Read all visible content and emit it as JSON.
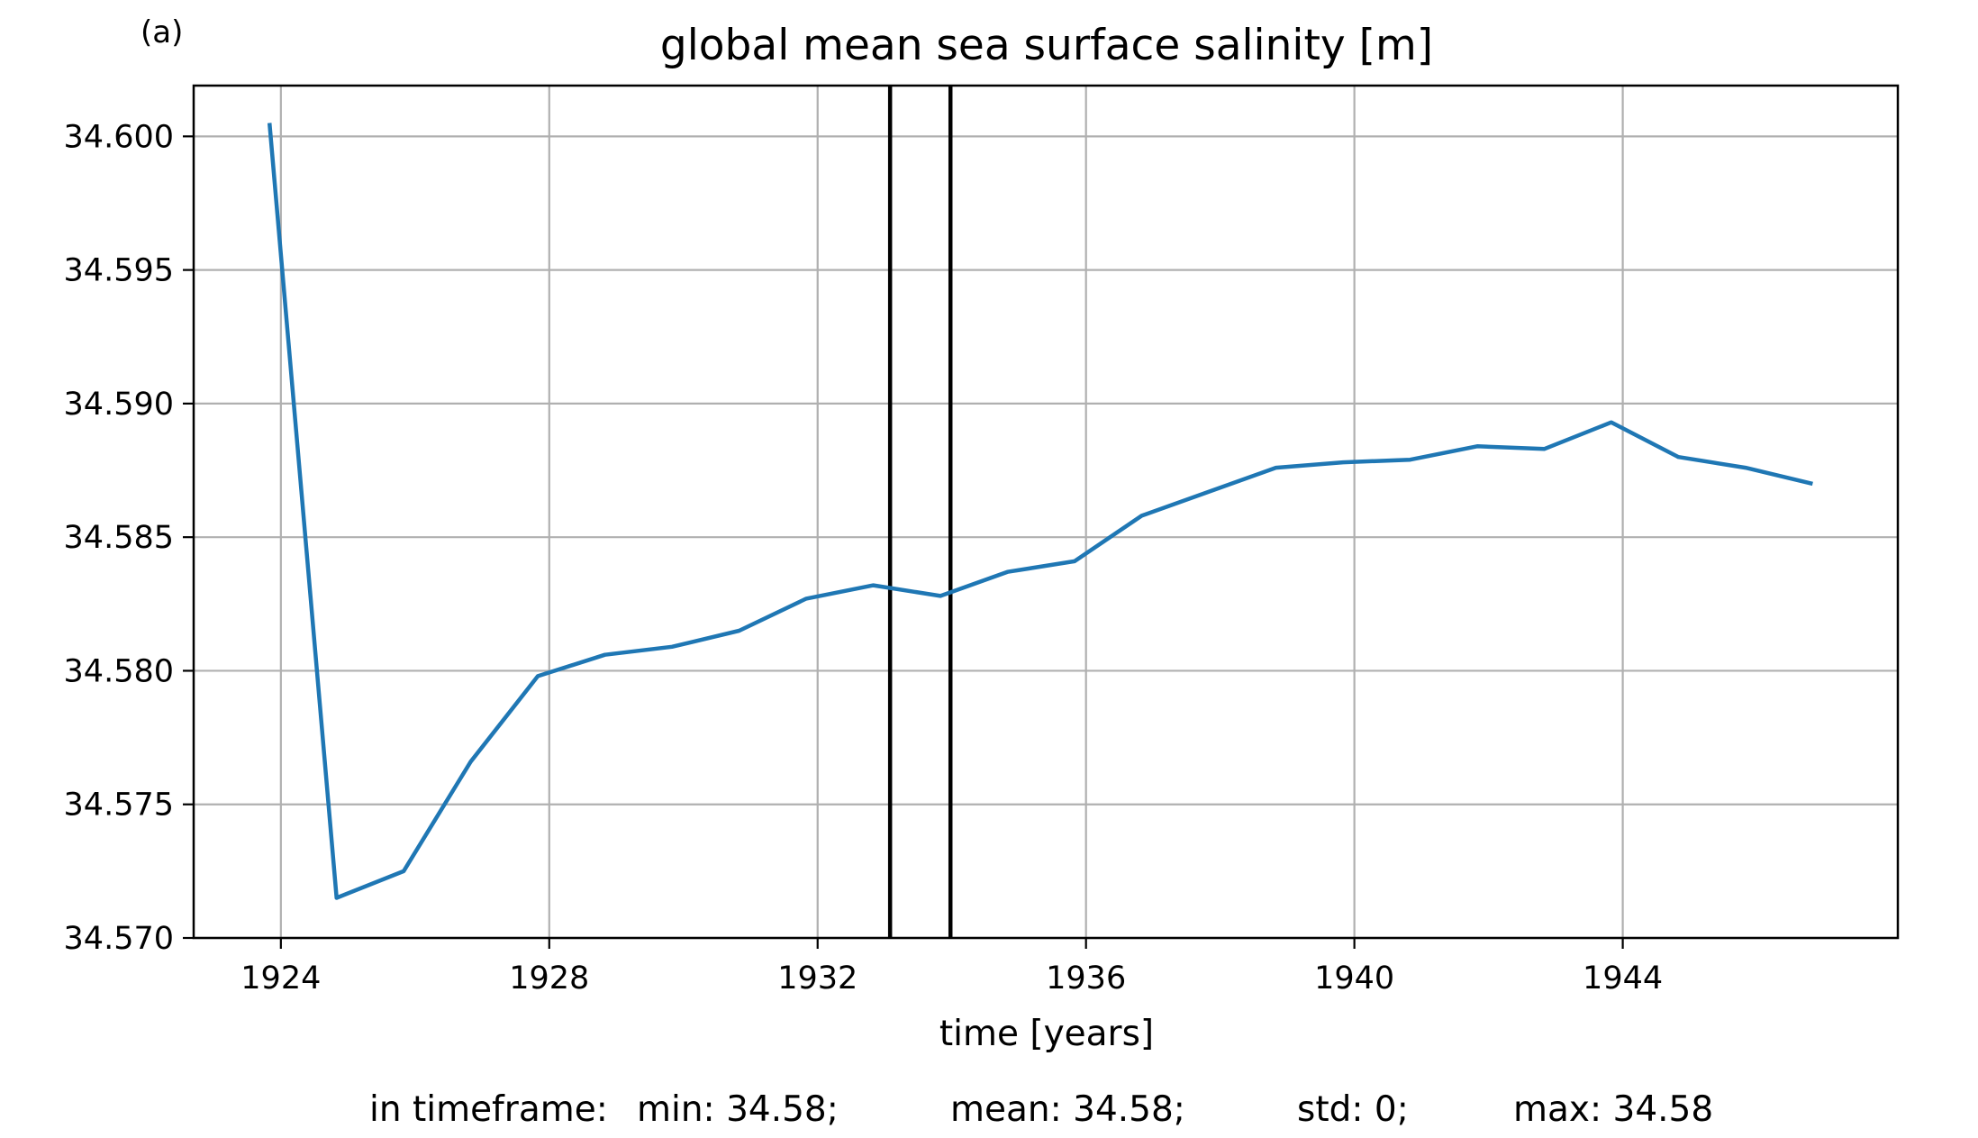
{
  "panel_label": "(a)",
  "stats": {
    "prefix": "in timeframe:",
    "min": "min: 34.58;",
    "mean": "mean: 34.58;",
    "std": "std: 0;",
    "max": "max: 34.58"
  },
  "colors": {
    "series": "#1f77b4",
    "grid": "#b0b0b0",
    "markers": "#000000",
    "frame": "#000000"
  },
  "chart_data": {
    "type": "line",
    "title": "global mean sea surface salinity [m]",
    "xlabel": "time [years]",
    "ylabel": "",
    "xlim": [
      1922.7,
      1948.1
    ],
    "ylim": [
      34.57,
      34.6019
    ],
    "xticks": [
      1924,
      1928,
      1932,
      1936,
      1940,
      1944
    ],
    "xtick_labels": [
      "1924",
      "1928",
      "1932",
      "1936",
      "1940",
      "1944"
    ],
    "yticks": [
      34.57,
      34.575,
      34.58,
      34.585,
      34.59,
      34.595,
      34.6
    ],
    "ytick_labels": [
      "34.570",
      "34.575",
      "34.580",
      "34.585",
      "34.590",
      "34.595",
      "34.600"
    ],
    "grid": true,
    "vertical_lines": [
      1933.08,
      1933.98
    ],
    "series": [
      {
        "x": [
          1923.83,
          1924.83,
          1925.83,
          1926.83,
          1927.83,
          1928.83,
          1929.83,
          1930.83,
          1931.83,
          1932.83,
          1933.83,
          1934.83,
          1935.83,
          1936.83,
          1937.83,
          1938.83,
          1939.83,
          1940.83,
          1941.83,
          1942.83,
          1943.83,
          1944.83,
          1945.83,
          1946.83
        ],
        "y": [
          34.6005,
          34.5715,
          34.5725,
          34.5766,
          34.5798,
          34.5806,
          34.5809,
          34.5815,
          34.5827,
          34.5832,
          34.5828,
          34.5837,
          34.5841,
          34.5858,
          34.5867,
          34.5876,
          34.5878,
          34.5879,
          34.5884,
          34.5883,
          34.5893,
          34.588,
          34.5876,
          34.587
        ]
      }
    ]
  }
}
